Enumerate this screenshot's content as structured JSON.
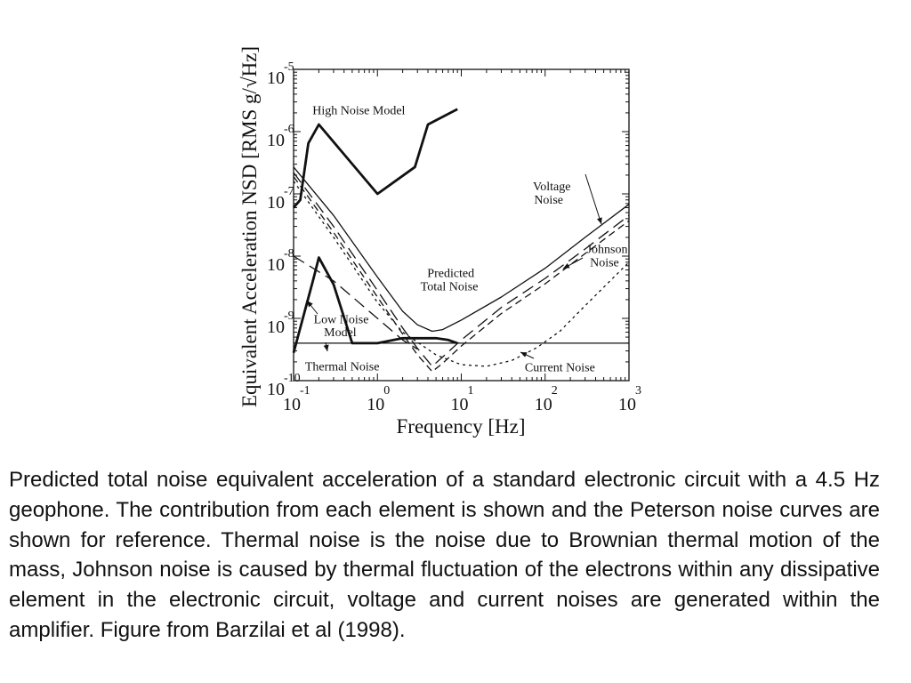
{
  "chart_data": {
    "type": "line",
    "xlabel": "Frequency [Hz]",
    "ylabel": "Equivalent Acceleration NSD [RMS g/√Hz]",
    "x_scale": "log",
    "y_scale": "log",
    "xlim": [
      0.1,
      1000
    ],
    "ylim": [
      1e-10,
      1e-05
    ],
    "x_ticks": [
      {
        "base": "10",
        "exp": "-1"
      },
      {
        "base": "10",
        "exp": "0"
      },
      {
        "base": "10",
        "exp": "1"
      },
      {
        "base": "10",
        "exp": "2"
      },
      {
        "base": "10",
        "exp": "3"
      }
    ],
    "y_ticks": [
      {
        "base": "10",
        "exp": "-10"
      },
      {
        "base": "10",
        "exp": "-9"
      },
      {
        "base": "10",
        "exp": "-8"
      },
      {
        "base": "10",
        "exp": "-7"
      },
      {
        "base": "10",
        "exp": "-6"
      },
      {
        "base": "10",
        "exp": "-5"
      }
    ],
    "grid": false,
    "series": [
      {
        "name": "High Noise Model",
        "style": "thick-solid",
        "x": [
          0.1,
          0.12,
          0.15,
          0.2,
          1.0,
          2.8,
          4.0,
          9.0
        ],
        "y": [
          6e-08,
          8e-08,
          6.5e-07,
          1.3e-06,
          1e-07,
          2.7e-07,
          1.3e-06,
          2.3e-06
        ]
      },
      {
        "name": "Low Noise Model",
        "style": "thick-solid",
        "x": [
          0.1,
          0.17,
          0.2,
          0.3,
          0.5,
          1.0,
          2.0,
          5.0,
          7.0,
          9.0
        ],
        "y": [
          2.8e-10,
          4e-09,
          9.5e-09,
          3.5e-09,
          4e-10,
          4e-10,
          4.8e-10,
          4.8e-10,
          4.5e-10,
          4e-10
        ]
      },
      {
        "name": "Thermal Noise",
        "style": "thin-solid",
        "x": [
          0.1,
          1000
        ],
        "y": [
          4e-10,
          4e-10
        ]
      },
      {
        "name": "Predicted Total Noise",
        "style": "thin-solid",
        "x": [
          0.1,
          0.3,
          1,
          2,
          3,
          4.5,
          6,
          10,
          30,
          100,
          300,
          1000
        ],
        "y": [
          2.7e-07,
          4.5e-08,
          4.6e-09,
          1.3e-09,
          7.9e-10,
          6.2e-10,
          6.6e-10,
          9.4e-10,
          2.2e-09,
          6.4e-09,
          2e-08,
          6.8e-08
        ]
      },
      {
        "name": "Voltage Noise",
        "style": "long-dash",
        "x": [
          0.1,
          0.3,
          1,
          2,
          3,
          4.5,
          6,
          10,
          30,
          100,
          300,
          1000
        ],
        "y": [
          2.2e-07,
          3e-08,
          2.8e-09,
          7e-10,
          3.3e-10,
          1.7e-10,
          2.4e-10,
          4.5e-10,
          1.5e-09,
          4.4e-09,
          1.3e-08,
          4.5e-08
        ]
      },
      {
        "name": "Johnson Noise",
        "style": "dashed",
        "x": [
          0.1,
          0.3,
          1,
          2,
          3,
          4.5,
          6,
          10,
          30,
          100,
          300,
          1000
        ],
        "y": [
          1.9e-07,
          2.4e-08,
          2.2e-09,
          5.6e-10,
          2.6e-10,
          1.4e-10,
          1.9e-10,
          3.6e-10,
          1.2e-09,
          3.6e-09,
          1.1e-08,
          3.7e-08
        ]
      },
      {
        "name": "Current Noise",
        "style": "dotted",
        "x": [
          0.1,
          0.3,
          1,
          2,
          5,
          10,
          20,
          40,
          80,
          150,
          300,
          1000
        ],
        "y": [
          1.6e-07,
          2e-08,
          1.8e-09,
          6e-10,
          2.6e-10,
          1.8e-10,
          1.7e-10,
          2.1e-10,
          3.4e-10,
          6.2e-10,
          1.6e-09,
          8e-09
        ]
      },
      {
        "name": "",
        "style": "long-dash",
        "x": [
          0.1,
          0.3,
          1,
          2,
          3
        ],
        "y": [
          1e-08,
          4e-09,
          1e-09,
          4.5e-10,
          3.2e-10
        ]
      }
    ],
    "annotations": [
      {
        "text": "High Noise Model",
        "x": 0.6,
        "y": 1.9e-06
      },
      {
        "text": "Voltage",
        "x": 120,
        "y": 1.15e-07
      },
      {
        "text": "Noise",
        "x": 110,
        "y": 7e-08
      },
      {
        "text": "Johnson",
        "x": 550,
        "y": 1.13e-08
      },
      {
        "text": "Noise",
        "x": 510,
        "y": 6.8e-09
      },
      {
        "text": "Predicted",
        "x": 7.5,
        "y": 4.6e-09
      },
      {
        "text": "Total Noise",
        "x": 7.2,
        "y": 2.8e-09
      },
      {
        "text": "Low Noise",
        "x": 0.37,
        "y": 8.4e-10
      },
      {
        "text": "Model",
        "x": 0.36,
        "y": 5.2e-10
      },
      {
        "text": "Thermal Noise",
        "x": 0.38,
        "y": 1.45e-10
      },
      {
        "text": "Current Noise",
        "x": 150,
        "y": 1.42e-10
      }
    ],
    "arrows": [
      {
        "from": [
          0.8,
          1e-07
        ],
        "to": [
          0.8,
          1e-07
        ],
        "label": "none"
      }
    ]
  },
  "caption": "Predicted total noise equivalent acceleration of a standard electronic circuit with a 4.5 Hz geophone. The contribution from each element is shown and the Peterson noise curves are shown for reference. Thermal noise is the noise due to Brownian thermal motion of the mass, Johnson noise is caused by thermal fluctuation of the electrons within any dissipative element in the electronic circuit, voltage and current noises are generated within the amplifier. Figure from Barzilai et al (1998).",
  "colors": {
    "ink": "#111111",
    "background": "#ffffff"
  }
}
